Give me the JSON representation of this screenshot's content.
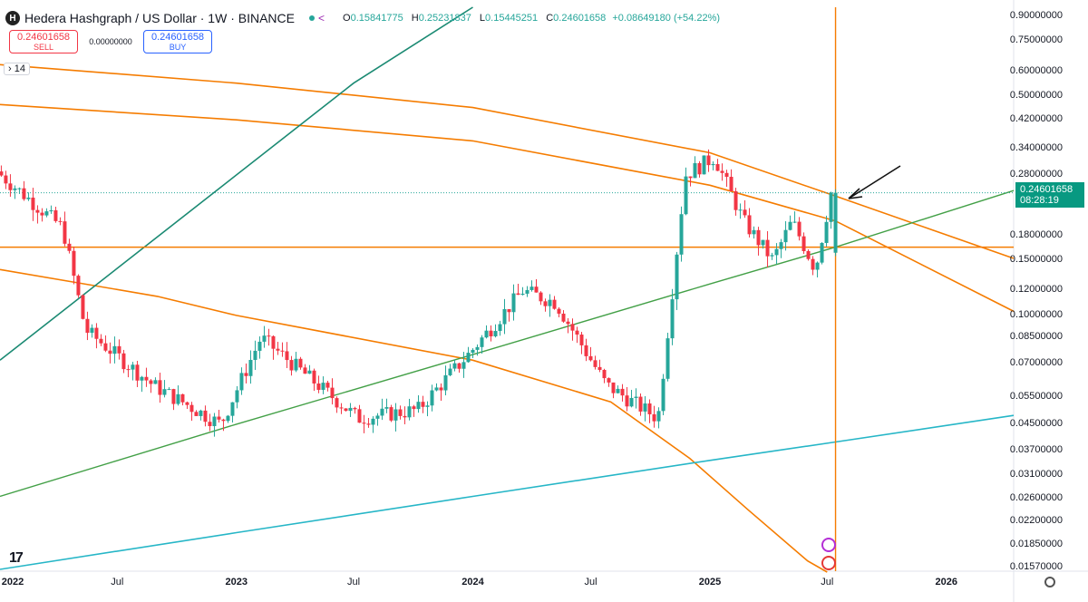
{
  "header": {
    "symbol_logo": "H",
    "title": "Hedera Hashgraph / US Dollar · 1W · BINANCE",
    "ohlc": {
      "o_key": "O",
      "o_val": "0.15841775",
      "h_key": "H",
      "h_val": "0.25231837",
      "l_key": "L",
      "l_val": "0.15445251",
      "c_key": "C",
      "c_val": "0.24601658",
      "change": "+0.08649180 (+54.22%)"
    },
    "icons": [
      "status-dot-icon",
      "share-icon"
    ]
  },
  "trade": {
    "sell_price": "0.24601658",
    "sell_label": "SELL",
    "spread": "0.00000000",
    "buy_price": "0.24601658",
    "buy_label": "BUY"
  },
  "drawing_count": "14",
  "price_axis": {
    "labels": [
      "0.90000000",
      "0.75000000",
      "0.60000000",
      "0.50000000",
      "0.42000000",
      "0.34000000",
      "0.28000000",
      "0.18000000",
      "0.15000000",
      "0.12000000",
      "0.10000000",
      "0.08500000",
      "0.07000000",
      "0.05500000",
      "0.04500000",
      "0.03700000",
      "0.03100000",
      "0.02600000",
      "0.02200000",
      "0.01850000",
      "0.01570000"
    ],
    "current_price": "0.24601658",
    "countdown": "08:28:19"
  },
  "time_axis": {
    "labels": [
      "2022",
      "Jul",
      "2023",
      "Jul",
      "2024",
      "Jul",
      "2025",
      "Jul",
      "2026"
    ],
    "year_labels": [
      "2022",
      "2023",
      "2024",
      "2025",
      "2026"
    ]
  },
  "colors": {
    "up": "#26a69a",
    "down": "#f23645",
    "orange": "#f57c00",
    "green_line": "#43a047",
    "teal_line": "#1b8a73",
    "cyan_line": "#26b6c7"
  },
  "chart_data": {
    "type": "candlestick",
    "title": "Hedera Hashgraph / US Dollar · 1W · BINANCE",
    "ylabel": "",
    "xlabel": "",
    "y_scale": "log",
    "ylim": [
      0.0153,
      0.96
    ],
    "x_range": [
      "2022-01-01",
      "2026-04-15"
    ],
    "last": {
      "open": 0.15841775,
      "high": 0.25231837,
      "low": 0.15445251,
      "close": 0.24601658,
      "change": 0.0864918,
      "change_pct": 54.22
    },
    "trend_approx": [
      {
        "date": "2022-01-01",
        "price": 0.29
      },
      {
        "date": "2022-04-15",
        "price": 0.19
      },
      {
        "date": "2022-05-20",
        "price": 0.09
      },
      {
        "date": "2022-09-01",
        "price": 0.06
      },
      {
        "date": "2022-12-15",
        "price": 0.045
      },
      {
        "date": "2023-02-15",
        "price": 0.085
      },
      {
        "date": "2023-07-15",
        "price": 0.047
      },
      {
        "date": "2023-10-15",
        "price": 0.05
      },
      {
        "date": "2024-01-01",
        "price": 0.075
      },
      {
        "date": "2024-03-25",
        "price": 0.12
      },
      {
        "date": "2024-05-15",
        "price": 0.11
      },
      {
        "date": "2024-08-01",
        "price": 0.06
      },
      {
        "date": "2024-10-20",
        "price": 0.047
      },
      {
        "date": "2024-12-01",
        "price": 0.28
      },
      {
        "date": "2025-01-15",
        "price": 0.32
      },
      {
        "date": "2025-03-01",
        "price": 0.2
      },
      {
        "date": "2025-04-15",
        "price": 0.15
      },
      {
        "date": "2025-05-15",
        "price": 0.2
      },
      {
        "date": "2025-06-20",
        "price": 0.14
      },
      {
        "date": "2025-07-14",
        "price": 0.246
      }
    ]
  }
}
